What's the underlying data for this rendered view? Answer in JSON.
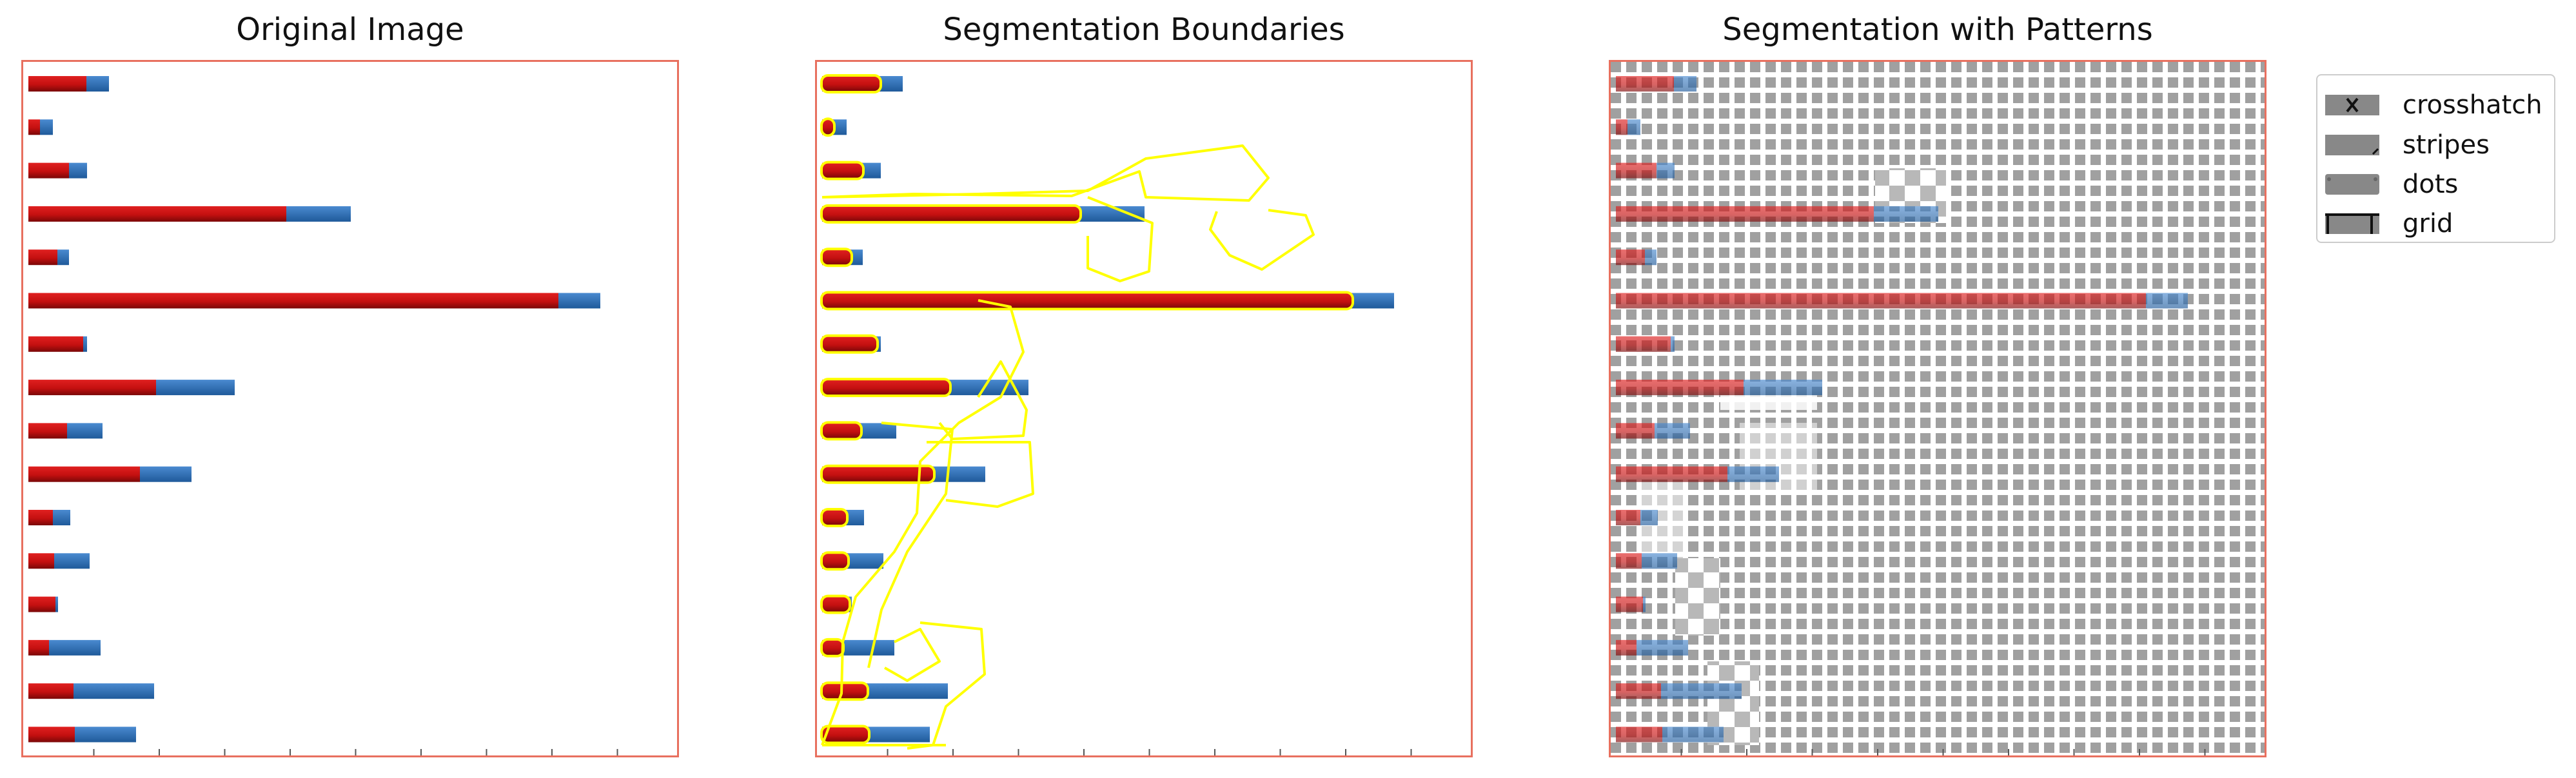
{
  "panels": [
    {
      "title": "Original Image"
    },
    {
      "title": "Segmentation Boundaries"
    },
    {
      "title": "Segmentation with Patterns"
    }
  ],
  "legend": {
    "items": [
      {
        "label": "crosshatch",
        "icon": "crosshatch-pattern-icon"
      },
      {
        "label": "stripes",
        "icon": "stripes-pattern-icon"
      },
      {
        "label": "dots",
        "icon": "dots-pattern-icon"
      },
      {
        "label": "grid",
        "icon": "grid-pattern-icon"
      }
    ]
  },
  "colors": {
    "frame": "#e8705f",
    "red_segment": "#c41010",
    "blue_segment": "#2f72b8",
    "boundary": "#ffff00",
    "pattern_fill": "#a0a0a0"
  },
  "bars": [
    {
      "red": 90,
      "blue": 35
    },
    {
      "red": 18,
      "blue": 20
    },
    {
      "red": 63,
      "blue": 28
    },
    {
      "red": 400,
      "blue": 100
    },
    {
      "red": 45,
      "blue": 18
    },
    {
      "red": 822,
      "blue": 65
    },
    {
      "red": 85,
      "blue": 6
    },
    {
      "red": 198,
      "blue": 122
    },
    {
      "red": 60,
      "blue": 55
    },
    {
      "red": 173,
      "blue": 80
    },
    {
      "red": 38,
      "blue": 27
    },
    {
      "red": 40,
      "blue": 55
    },
    {
      "red": 42,
      "blue": 4
    },
    {
      "red": 32,
      "blue": 80
    },
    {
      "red": 70,
      "blue": 125
    },
    {
      "red": 72,
      "blue": 95
    }
  ]
}
